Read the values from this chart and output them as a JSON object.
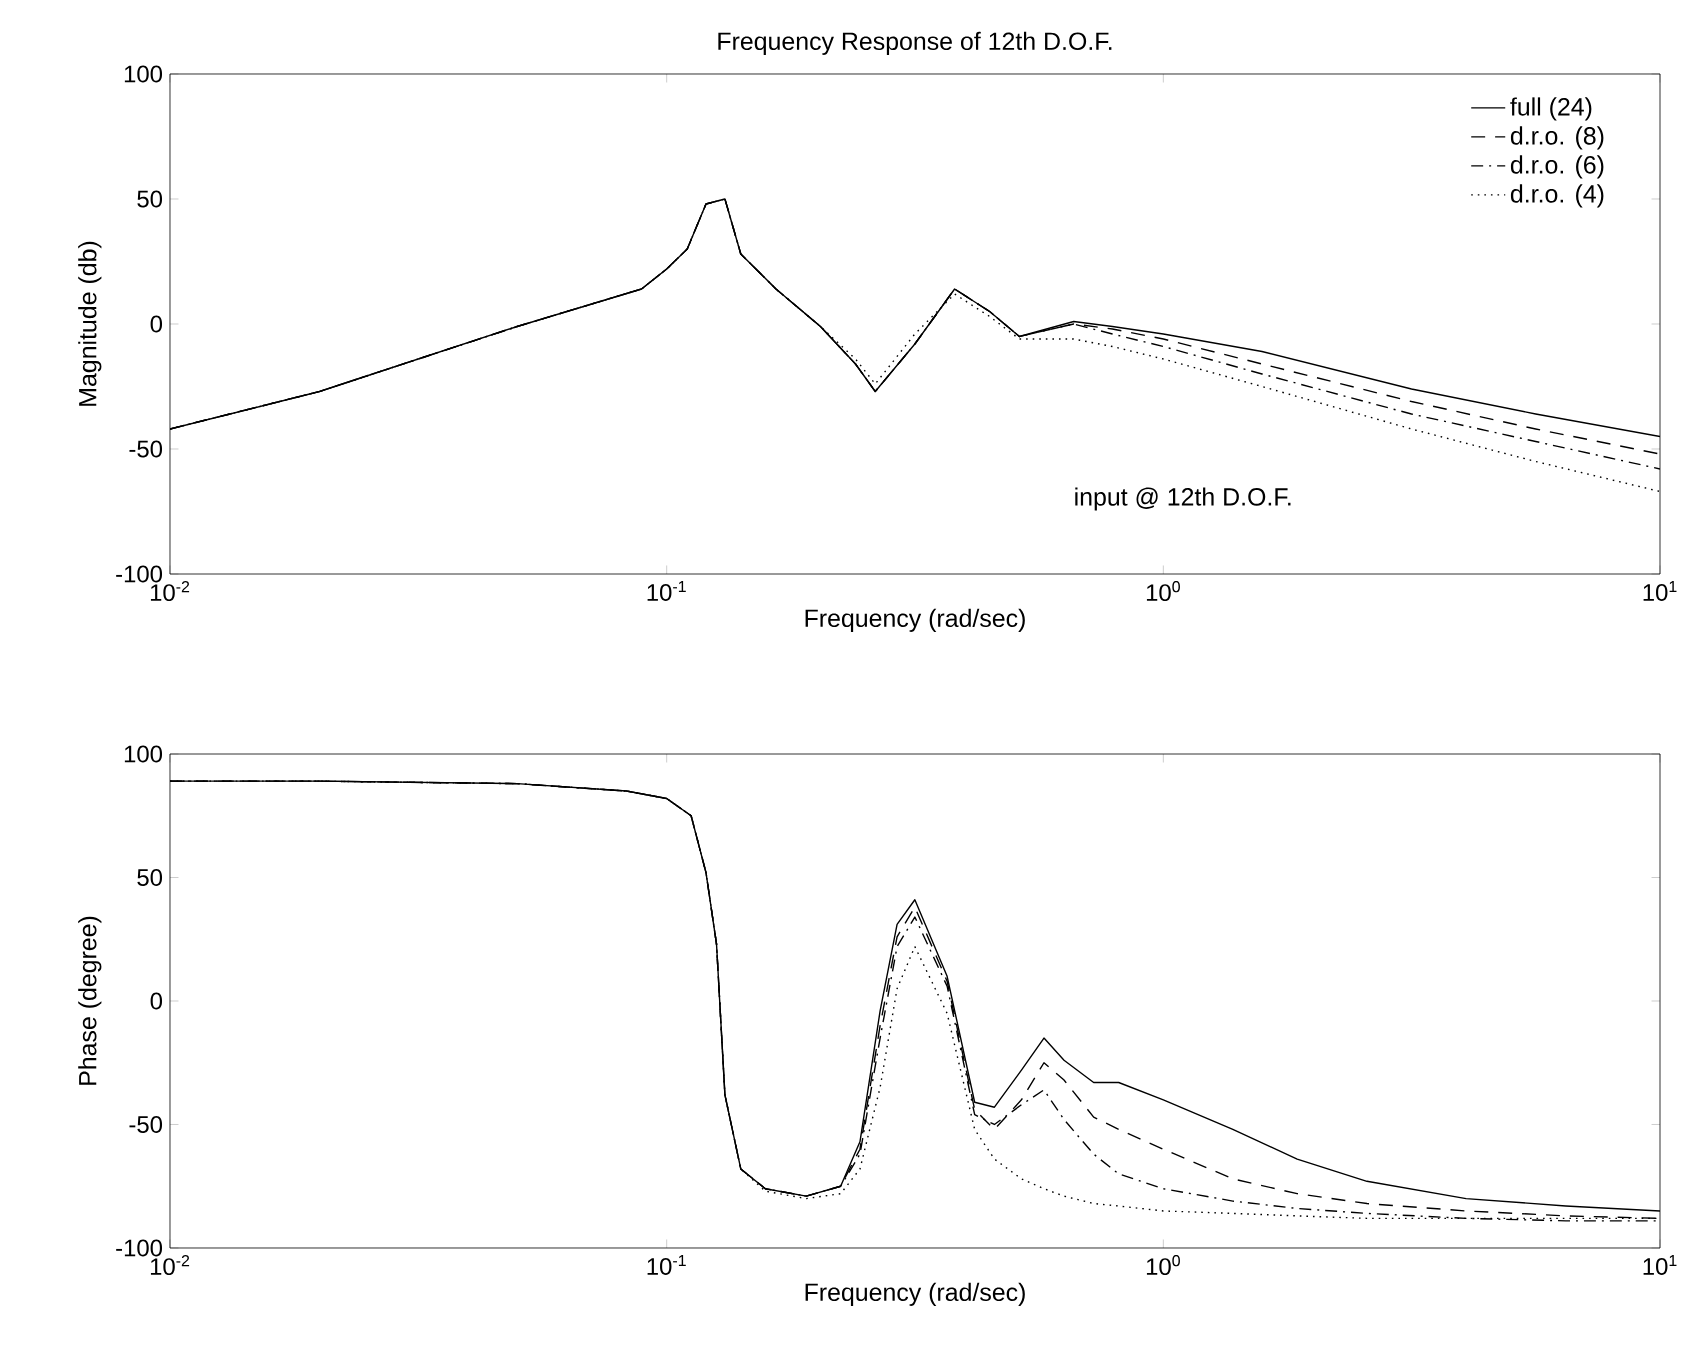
{
  "chart_data": [
    {
      "type": "line",
      "title": "Frequency Response of 12th D.O.F.",
      "xlabel": "Frequency (rad/sec)",
      "ylabel": "Magnitude (db)",
      "log": "x",
      "legend": "top right",
      "annotations": [
        "input @ 12th D.O.F."
      ],
      "x": [
        0.01,
        0.02,
        0.05,
        0.089,
        0.1,
        0.11,
        0.12,
        0.131,
        0.141,
        0.166,
        0.204,
        0.24,
        0.263,
        0.316,
        0.38,
        0.447,
        0.513,
        0.66,
        0.79,
        1,
        1.58,
        3.16,
        5.62,
        10
      ],
      "xlim": [
        0.01,
        10
      ],
      "xticks": [
        {
          "value": 0.01,
          "label": "10$^{-2}$"
        },
        {
          "value": 0.1,
          "label": "10$^{-1}$"
        },
        {
          "value": 1,
          "label": "10$^{0}$"
        },
        {
          "value": 10,
          "label": "10$^{1}$"
        }
      ],
      "ylim": [
        -100,
        100
      ],
      "yticks": [
        -100,
        -50,
        0,
        50,
        100
      ],
      "series": [
        {
          "name": "full (24)",
          "color": "#000000",
          "line_style": "solid",
          "values": [
            -42,
            -27,
            -1,
            14,
            22,
            30,
            48,
            50,
            28,
            14,
            -1,
            -16,
            -27,
            -8,
            14,
            5,
            -5,
            1,
            -1,
            -4,
            -11,
            -26,
            -36,
            -45
          ]
        },
        {
          "name": "d.r.o. (8)",
          "color": "#000000",
          "line_style": "dashed",
          "values": [
            -42,
            -27,
            -1,
            14,
            22,
            30,
            48,
            50,
            28,
            14,
            -1,
            -16,
            -27,
            -8,
            14,
            5,
            -5,
            0,
            -2,
            -6,
            -16,
            -31,
            -42,
            -52
          ]
        },
        {
          "name": "d.r.o. (6)",
          "color": "#000000",
          "line_style": "dashdot",
          "values": [
            -42,
            -27,
            -1,
            14,
            22,
            30,
            48,
            50,
            28,
            14,
            -1,
            -16,
            -27,
            -8,
            14,
            5,
            -5,
            0,
            -4,
            -9,
            -20,
            -36,
            -47,
            -58
          ]
        },
        {
          "name": "d.r.o. (4)",
          "color": "#000000",
          "line_style": "dotted",
          "values": [
            -42,
            -27,
            -1,
            14,
            22,
            30,
            48,
            50,
            28,
            14,
            -1,
            -14,
            -24,
            -4,
            12,
            3,
            -6,
            -6,
            -9,
            -14,
            -25,
            -42,
            -55,
            -67
          ]
        }
      ]
    },
    {
      "type": "line",
      "xlabel": "Frequency (rad/sec)",
      "ylabel": "Phase (degree)",
      "log": "x",
      "x": [
        0.01,
        0.02,
        0.05,
        0.083,
        0.1,
        0.112,
        0.12,
        0.126,
        0.131,
        0.141,
        0.158,
        0.191,
        0.224,
        0.245,
        0.269,
        0.291,
        0.316,
        0.367,
        0.417,
        0.457,
        0.518,
        0.575,
        0.631,
        0.724,
        0.813,
        1,
        1.38,
        1.86,
        2.57,
        4.07,
        6.46,
        10
      ],
      "xlim": [
        0.01,
        10
      ],
      "xticks": [
        {
          "value": 0.01,
          "label": "10$^{-2}$"
        },
        {
          "value": 0.1,
          "label": "10$^{-1}$"
        },
        {
          "value": 1,
          "label": "10$^{0}$"
        },
        {
          "value": 10,
          "label": "10$^{1}$"
        }
      ],
      "ylim": [
        -100,
        100
      ],
      "yticks": [
        -100,
        -50,
        0,
        50,
        100
      ],
      "series": [
        {
          "color": "#000000",
          "line_style": "solid",
          "values": [
            89,
            89,
            88,
            85,
            82,
            75,
            52,
            23,
            -38,
            -68,
            -76,
            -79,
            -75,
            -57,
            -4,
            31,
            41,
            10,
            -41,
            -43,
            -28,
            -15,
            -24,
            -33,
            -33,
            -40,
            -52,
            -64,
            -73,
            -80,
            -83,
            -85
          ]
        },
        {
          "color": "#000000",
          "line_style": "dashed",
          "values": [
            89,
            89,
            88,
            85,
            82,
            75,
            52,
            23,
            -38,
            -68,
            -76,
            -79,
            -75,
            -60,
            -10,
            26,
            38,
            8,
            -44,
            -52,
            -40,
            -25,
            -32,
            -47,
            -52,
            -60,
            -72,
            -78,
            -82,
            -85,
            -87,
            -88
          ]
        },
        {
          "color": "#000000",
          "line_style": "dashdot",
          "values": [
            89,
            89,
            88,
            85,
            82,
            75,
            52,
            23,
            -38,
            -68,
            -76,
            -79,
            -75,
            -62,
            -15,
            22,
            34,
            6,
            -46,
            -50,
            -42,
            -36,
            -48,
            -62,
            -70,
            -76,
            -81,
            -84,
            -86,
            -88,
            -89,
            -89
          ]
        },
        {
          "color": "#000000",
          "line_style": "dotted",
          "values": [
            89,
            89,
            88,
            85,
            82,
            75,
            52,
            23,
            -38,
            -68,
            -77,
            -80,
            -78,
            -68,
            -35,
            5,
            22,
            -5,
            -52,
            -64,
            -72,
            -76,
            -79,
            -82,
            -83,
            -85,
            -86,
            -87,
            -88,
            -88,
            -88,
            -88
          ]
        }
      ]
    }
  ]
}
